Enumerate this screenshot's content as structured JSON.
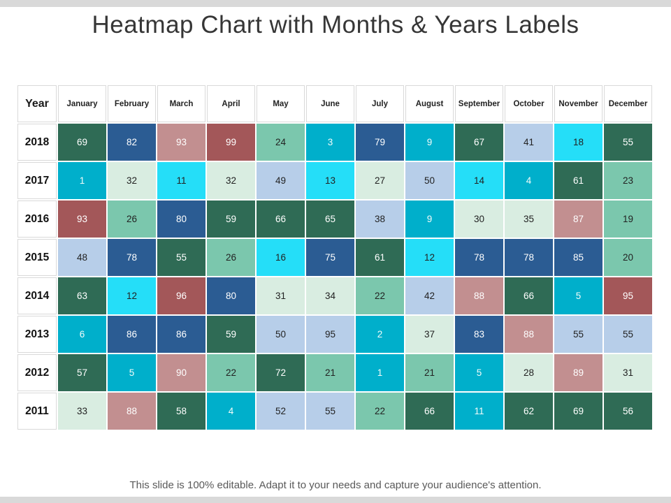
{
  "page": {
    "title": "Heatmap Chart with Months & Years Labels",
    "footer": "This slide is 100% editable. Adapt it to your needs and capture your audience's attention."
  },
  "chart_data": {
    "type": "heatmap",
    "title": "Heatmap Chart with Months & Years Labels",
    "row_header_label": "Year",
    "columns": [
      "January",
      "February",
      "March",
      "April",
      "May",
      "June",
      "July",
      "August",
      "September",
      "October",
      "November",
      "December"
    ],
    "palette": {
      "dark_green": {
        "fill": "#2F6B55",
        "text": "#FFFFFF"
      },
      "dark_blue": {
        "fill": "#2B5C93",
        "text": "#FFFFFF"
      },
      "maroon": {
        "fill": "#A35759",
        "text": "#FFFFFF"
      },
      "rose": {
        "fill": "#C28F90",
        "text": "#FFFFFF"
      },
      "teal": {
        "fill": "#00AFCB",
        "text": "#F2FCFA"
      },
      "cyan": {
        "fill": "#25DEF8",
        "text": "#222222"
      },
      "aqua": {
        "fill": "#7BC7AD",
        "text": "#222222"
      },
      "mint": {
        "fill": "#D9EDE1",
        "text": "#222222"
      },
      "periwinkle": {
        "fill": "#B7CEE9",
        "text": "#222222"
      }
    },
    "rows": [
      {
        "year": "2018",
        "values": [
          69,
          82,
          93,
          99,
          24,
          3,
          79,
          9,
          67,
          41,
          18,
          55
        ],
        "colors": [
          "dark_green",
          "dark_blue",
          "rose",
          "maroon",
          "aqua",
          "teal",
          "dark_blue",
          "teal",
          "dark_green",
          "periwinkle",
          "cyan",
          "dark_green"
        ]
      },
      {
        "year": "2017",
        "values": [
          1,
          32,
          11,
          32,
          49,
          13,
          27,
          50,
          14,
          4,
          61,
          23
        ],
        "colors": [
          "teal",
          "mint",
          "cyan",
          "mint",
          "periwinkle",
          "cyan",
          "mint",
          "periwinkle",
          "cyan",
          "teal",
          "dark_green",
          "aqua"
        ]
      },
      {
        "year": "2016",
        "values": [
          93,
          26,
          80,
          59,
          66,
          65,
          38,
          9,
          30,
          35,
          87,
          19
        ],
        "colors": [
          "maroon",
          "aqua",
          "dark_blue",
          "dark_green",
          "dark_green",
          "dark_green",
          "periwinkle",
          "teal",
          "mint",
          "mint",
          "rose",
          "aqua"
        ]
      },
      {
        "year": "2015",
        "values": [
          48,
          78,
          55,
          26,
          16,
          75,
          61,
          12,
          78,
          78,
          85,
          20
        ],
        "colors": [
          "periwinkle",
          "dark_blue",
          "dark_green",
          "aqua",
          "cyan",
          "dark_blue",
          "dark_green",
          "cyan",
          "dark_blue",
          "dark_blue",
          "dark_blue",
          "aqua"
        ]
      },
      {
        "year": "2014",
        "values": [
          63,
          12,
          96,
          80,
          31,
          34,
          22,
          42,
          88,
          66,
          5,
          95
        ],
        "colors": [
          "dark_green",
          "cyan",
          "maroon",
          "dark_blue",
          "mint",
          "mint",
          "aqua",
          "periwinkle",
          "rose",
          "dark_green",
          "teal",
          "maroon"
        ]
      },
      {
        "year": "2013",
        "values": [
          6,
          86,
          86,
          59,
          50,
          95,
          2,
          37,
          83,
          88,
          55,
          55
        ],
        "colors": [
          "teal",
          "dark_blue",
          "dark_blue",
          "dark_green",
          "periwinkle",
          "periwinkle",
          "teal",
          "mint",
          "dark_blue",
          "rose",
          "periwinkle",
          "periwinkle"
        ]
      },
      {
        "year": "2012",
        "values": [
          57,
          5,
          90,
          22,
          72,
          21,
          1,
          21,
          5,
          28,
          89,
          31
        ],
        "colors": [
          "dark_green",
          "teal",
          "rose",
          "aqua",
          "dark_green",
          "aqua",
          "teal",
          "aqua",
          "teal",
          "mint",
          "rose",
          "mint"
        ]
      },
      {
        "year": "2011",
        "values": [
          33,
          88,
          58,
          4,
          52,
          55,
          22,
          66,
          11,
          62,
          69,
          56
        ],
        "colors": [
          "mint",
          "rose",
          "dark_green",
          "teal",
          "periwinkle",
          "periwinkle",
          "aqua",
          "dark_green",
          "teal",
          "dark_green",
          "dark_green",
          "dark_green"
        ]
      }
    ]
  }
}
